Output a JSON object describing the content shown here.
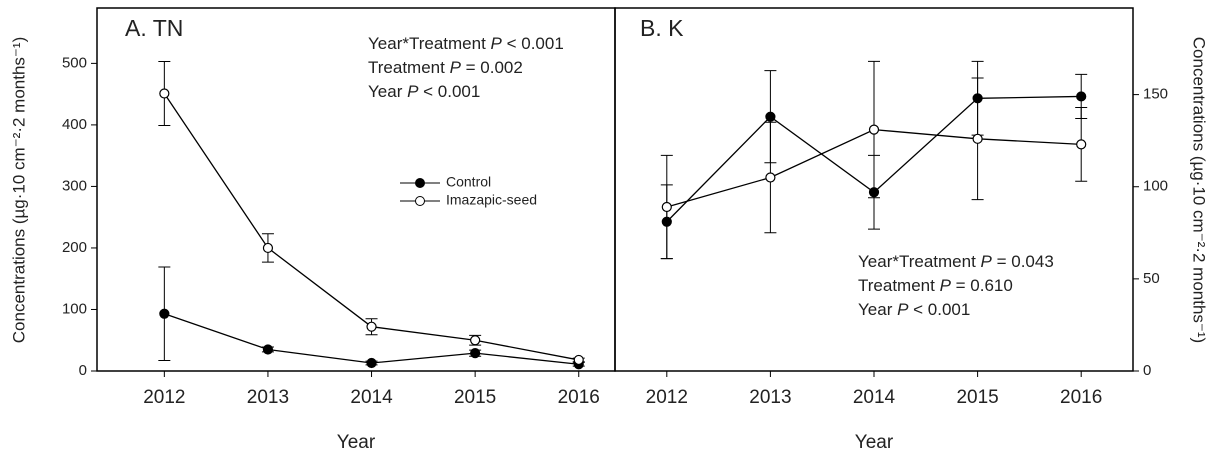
{
  "chart_data": [
    {
      "type": "line",
      "title": "A. TN",
      "xlabel": "Year",
      "ylabel": "Concentrations (µg·10 cm⁻²·2 months⁻¹)",
      "x": [
        2012,
        2013,
        2014,
        2015,
        2016
      ],
      "xlim": [
        2011.35,
        2016.35
      ],
      "xticks": [
        2012,
        2013,
        2014,
        2015,
        2016
      ],
      "ylim": [
        0,
        590
      ],
      "yticks": [
        0,
        100,
        200,
        300,
        400,
        500
      ],
      "yaxis_side": "left",
      "series": [
        {
          "name": "Control",
          "color": "#000000",
          "marker_fill": "#000000",
          "values": [
            93,
            35,
            13,
            29,
            11
          ],
          "errors": [
            76,
            4,
            3,
            5,
            3
          ]
        },
        {
          "name": "Imazapic-seed",
          "color": "#000000",
          "marker_fill": "#ffffff",
          "values": [
            451,
            200,
            72,
            50,
            18
          ],
          "errors": [
            52,
            23,
            13,
            8,
            3
          ]
        }
      ],
      "annotations": [
        [
          "Year*Treatment ",
          "P",
          " < 0.001"
        ],
        [
          "Treatment ",
          "P",
          " = 0.002"
        ],
        [
          "Year ",
          "P",
          " < 0.001"
        ]
      ]
    },
    {
      "type": "line",
      "title": "B. K",
      "xlabel": "Year",
      "ylabel": "Concentrations (µg·10 cm⁻²·2 months⁻¹)",
      "x": [
        2012,
        2013,
        2014,
        2015,
        2016
      ],
      "xlim": [
        2011.5,
        2016.5
      ],
      "xticks": [
        2012,
        2013,
        2014,
        2015,
        2016
      ],
      "ylim": [
        0,
        197
      ],
      "yticks": [
        0,
        50,
        100,
        150
      ],
      "yaxis_side": "right",
      "series": [
        {
          "color": "#000000",
          "marker_fill": "#000000",
          "values": [
            81,
            138,
            97,
            148,
            149
          ],
          "errors": [
            20,
            25,
            20,
            20,
            12
          ]
        },
        {
          "color": "#000000",
          "marker_fill": "#ffffff",
          "values": [
            89,
            105,
            131,
            126,
            123
          ],
          "errors": [
            28,
            30,
            37,
            33,
            20
          ]
        }
      ],
      "annotations": [
        [
          "Year*Treatment ",
          "P",
          " = 0.043"
        ],
        [
          "Treatment ",
          "P",
          " = 0.610"
        ],
        [
          "Year ",
          "P",
          " < 0.001"
        ]
      ]
    }
  ]
}
